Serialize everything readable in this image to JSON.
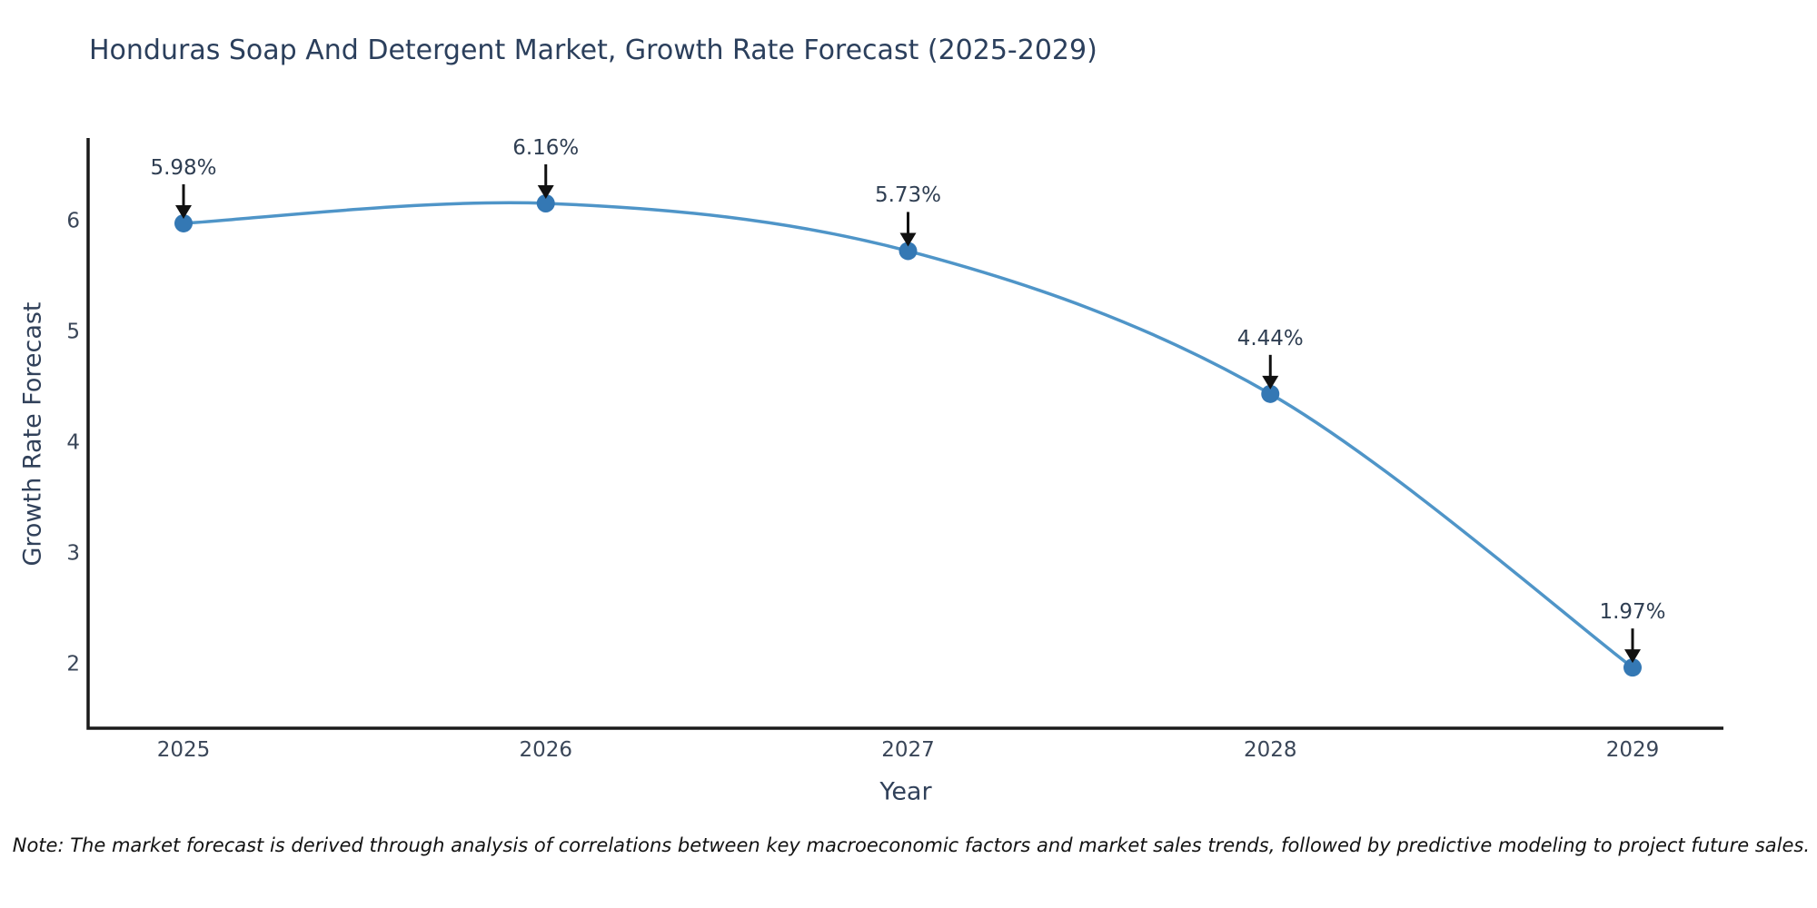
{
  "chart": {
    "title": "Honduras Soap And Detergent Market, Growth Rate Forecast (2025-2029)",
    "xlabel": "Year",
    "ylabel": "Growth Rate Forecast",
    "note": "Note: The market forecast is derived through analysis of correlations between key macroeconomic factors and market sales trends, followed by predictive modeling to project future sales."
  },
  "chart_data": {
    "type": "line",
    "title": "Honduras Soap And Detergent Market, Growth Rate Forecast (2025-2029)",
    "xlabel": "Year",
    "ylabel": "Growth Rate Forecast",
    "x": [
      2025,
      2026,
      2027,
      2028,
      2029
    ],
    "values": [
      5.98,
      6.16,
      5.73,
      4.44,
      1.97
    ],
    "point_labels": [
      "5.98%",
      "6.16%",
      "5.73%",
      "4.44%",
      "1.97%"
    ],
    "x_tick_labels": [
      "2025",
      "2026",
      "2027",
      "2028",
      "2029"
    ],
    "y_ticks": [
      6,
      5,
      4,
      3,
      2
    ],
    "ylim": [
      1.4,
      6.75
    ],
    "grid": false,
    "legend": "none",
    "smooth": true,
    "line_color": "#4f95c8",
    "marker_color": "#3478b4",
    "axis_color": "#1a1a1a",
    "annotation_color": "#111111",
    "note": "Note: The market forecast is derived through analysis of correlations between key macroeconomic factors and market sales trends, followed by predictive modeling to project future sales."
  }
}
